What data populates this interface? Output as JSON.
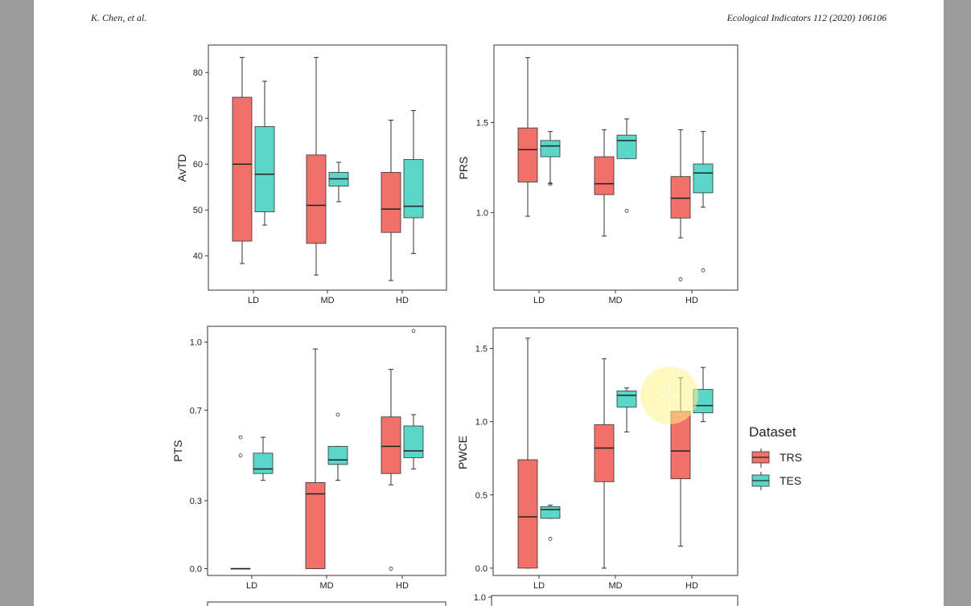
{
  "header": {
    "authors": "K. Chen, et al.",
    "journal": "Ecological Indicators 112 (2020) 106106"
  },
  "legend": {
    "title": "Dataset",
    "entries": [
      {
        "label": "TRS",
        "color": "#f0706a"
      },
      {
        "label": "TES",
        "color": "#5bd6c8"
      }
    ]
  },
  "colors": {
    "TRS": "#f0706a",
    "TES": "#5bd6c8",
    "highlight": "#fff48a"
  },
  "chart_data": [
    {
      "id": "avtd",
      "type": "boxplot",
      "ylabel": "AvTD",
      "categories": [
        "LD",
        "MD",
        "HD"
      ],
      "ylim": [
        32.5,
        86
      ],
      "yticks": [
        40,
        50,
        60,
        70,
        80
      ],
      "ytick_labels": [
        "40",
        "50",
        "60",
        "70",
        "80"
      ],
      "series": [
        {
          "name": "TRS",
          "boxes": [
            {
              "min": 38.3,
              "q1": 43.2,
              "median": 60,
              "q3": 74.6,
              "max": 83.3,
              "outliers": []
            },
            {
              "min": 35.8,
              "q1": 42.7,
              "median": 51,
              "q3": 62,
              "max": 83.3,
              "outliers": []
            },
            {
              "min": 34.6,
              "q1": 45.1,
              "median": 50.2,
              "q3": 58.2,
              "max": 69.6,
              "outliers": []
            }
          ]
        },
        {
          "name": "TES",
          "boxes": [
            {
              "min": 46.7,
              "q1": 49.6,
              "median": 57.8,
              "q3": 68.2,
              "max": 78.1,
              "outliers": []
            },
            {
              "min": 51.8,
              "q1": 55.2,
              "median": 56.8,
              "q3": 58.2,
              "max": 60.4,
              "outliers": []
            },
            {
              "min": 40.5,
              "q1": 48.3,
              "median": 50.8,
              "q3": 61,
              "max": 71.7,
              "outliers": []
            }
          ]
        }
      ]
    },
    {
      "id": "prs",
      "type": "boxplot",
      "ylabel": "PRS",
      "categories": [
        "LD",
        "MD",
        "HD"
      ],
      "ylim": [
        0.57,
        1.93
      ],
      "yticks": [
        1.0,
        1.5
      ],
      "ytick_labels": [
        "1.0",
        "1.5"
      ],
      "series": [
        {
          "name": "TRS",
          "boxes": [
            {
              "min": 0.98,
              "q1": 1.17,
              "median": 1.35,
              "q3": 1.47,
              "max": 1.86,
              "outliers": []
            },
            {
              "min": 0.87,
              "q1": 1.1,
              "median": 1.16,
              "q3": 1.31,
              "max": 1.46,
              "outliers": []
            },
            {
              "min": 0.86,
              "q1": 0.97,
              "median": 1.08,
              "q3": 1.2,
              "max": 1.46,
              "outliers": [
                0.63
              ]
            }
          ]
        },
        {
          "name": "TES",
          "boxes": [
            {
              "min": 1.16,
              "q1": 1.31,
              "median": 1.37,
              "q3": 1.4,
              "max": 1.45,
              "outliers": [
                1.16
              ]
            },
            {
              "min": 1.3,
              "q1": 1.3,
              "median": 1.4,
              "q3": 1.43,
              "max": 1.52,
              "outliers": [
                1.01
              ]
            },
            {
              "min": 1.03,
              "q1": 1.11,
              "median": 1.22,
              "q3": 1.27,
              "max": 1.45,
              "outliers": [
                0.68
              ]
            }
          ]
        }
      ]
    },
    {
      "id": "pts",
      "type": "boxplot",
      "ylabel": "PTS",
      "categories": [
        "LD",
        "MD",
        "HD"
      ],
      "ylim": [
        -0.03,
        1.07
      ],
      "yticks": [
        0.0,
        0.3,
        0.7,
        1.0
      ],
      "ytick_labels": [
        "0.0",
        "0.3",
        "0.7",
        "1.0"
      ],
      "series": [
        {
          "name": "TRS",
          "boxes": [
            {
              "min": 0,
              "q1": 0,
              "median": 0,
              "q3": 0,
              "max": 0,
              "outliers": [
                0.5,
                0.58
              ]
            },
            {
              "min": 0,
              "q1": 0,
              "median": 0.33,
              "q3": 0.38,
              "max": 0.97,
              "outliers": []
            },
            {
              "min": 0.37,
              "q1": 0.42,
              "median": 0.54,
              "q3": 0.67,
              "max": 0.88,
              "outliers": [
                0
              ]
            }
          ]
        },
        {
          "name": "TES",
          "boxes": [
            {
              "min": 0.39,
              "q1": 0.42,
              "median": 0.44,
              "q3": 0.51,
              "max": 0.58,
              "outliers": []
            },
            {
              "min": 0.39,
              "q1": 0.46,
              "median": 0.48,
              "q3": 0.54,
              "max": 0.54,
              "outliers": [
                0.68
              ]
            },
            {
              "min": 0.44,
              "q1": 0.49,
              "median": 0.52,
              "q3": 0.63,
              "max": 0.68,
              "outliers": [
                1.05
              ]
            }
          ]
        }
      ]
    },
    {
      "id": "pwce",
      "type": "boxplot",
      "ylabel": "PWCE",
      "categories": [
        "LD",
        "MD",
        "HD"
      ],
      "ylim": [
        -0.05,
        1.64
      ],
      "yticks": [
        0.0,
        0.5,
        1.0,
        1.5
      ],
      "ytick_labels": [
        "0.0",
        "0.5",
        "1.0",
        "1.5"
      ],
      "series": [
        {
          "name": "TRS",
          "boxes": [
            {
              "min": 0,
              "q1": 0,
              "median": 0.35,
              "q3": 0.74,
              "max": 1.57,
              "outliers": []
            },
            {
              "min": 0,
              "q1": 0.59,
              "median": 0.82,
              "q3": 0.98,
              "max": 1.43,
              "outliers": []
            },
            {
              "min": 0.15,
              "q1": 0.61,
              "median": 0.8,
              "q3": 1.07,
              "max": 1.3,
              "outliers": []
            }
          ]
        },
        {
          "name": "TES",
          "boxes": [
            {
              "min": 0.34,
              "q1": 0.34,
              "median": 0.4,
              "q3": 0.42,
              "max": 0.43,
              "outliers": [
                0.2
              ]
            },
            {
              "min": 0.93,
              "q1": 1.1,
              "median": 1.18,
              "q3": 1.21,
              "max": 1.23,
              "outliers": []
            },
            {
              "min": 1.0,
              "q1": 1.06,
              "median": 1.11,
              "q3": 1.22,
              "max": 1.37,
              "outliers": []
            }
          ]
        }
      ]
    },
    {
      "id": "bottom-left",
      "type": "boxplot",
      "ylabel": "",
      "categories": [],
      "ylim": [
        0,
        1
      ],
      "yticks": [],
      "ytick_labels": [],
      "series": []
    },
    {
      "id": "bottom-right",
      "type": "boxplot",
      "ylabel": "",
      "categories": [],
      "ylim": [
        0,
        1.05
      ],
      "yticks": [
        1.0
      ],
      "ytick_labels": [
        "1.0"
      ],
      "series": []
    }
  ]
}
